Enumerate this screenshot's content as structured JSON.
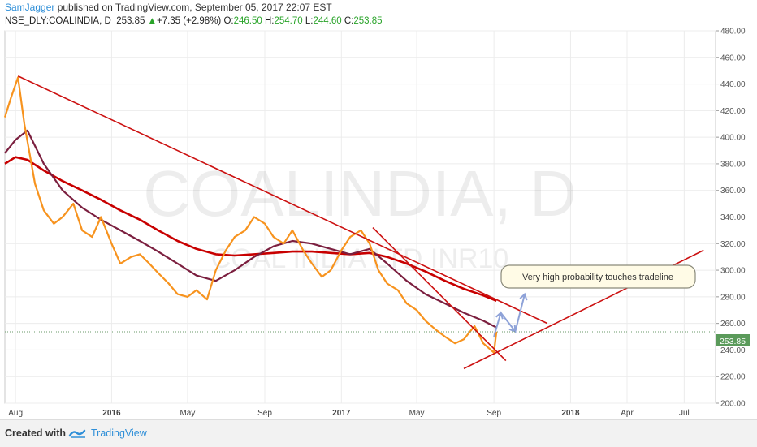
{
  "header": {
    "author": "SamJagger",
    "published": " published on TradingView.com, September 05, 2017 22:07 EST",
    "symbol": "NSE_DLY:COALINDIA, D",
    "price": "253.85",
    "change_arrow": "▲",
    "change": "+7.35 (+2.98%)",
    "o_label": "O:",
    "o": "246.50",
    "h_label": "H:",
    "h": "254.70",
    "l_label": "L:",
    "l": "244.60",
    "c_label": "C:",
    "c": "253.85"
  },
  "watermark": {
    "line1": "COALINDIA, D",
    "line2": "COAL INDIA LTD INR10"
  },
  "footer": {
    "created_with": "Created with",
    "brand": "TradingView"
  },
  "colors": {
    "price": "#f7931e",
    "ma_dark": "#7b1f3f",
    "ma_red": "#c80000",
    "trendline": "#cc1111",
    "projection": "#8ea2d8",
    "last_price_bg": "#5a9a5a"
  },
  "chart_data": {
    "type": "line",
    "title": "",
    "ylim": [
      200,
      480
    ],
    "y_ticks": [
      "200.00",
      "220.00",
      "240.00",
      "260.00",
      "280.00",
      "300.00",
      "320.00",
      "340.00",
      "360.00",
      "380.00",
      "400.00",
      "420.00",
      "440.00",
      "460.00",
      "480.00"
    ],
    "x_ticks": [
      "Aug",
      "2016",
      "May",
      "Sep",
      "2017",
      "May",
      "Sep",
      "2018",
      "Apr",
      "Jul"
    ],
    "last_price": "253.85",
    "annotation": "Very high probability touches tradeline",
    "series": [
      {
        "key": "price",
        "x": [
          "2015-07-15",
          "2015-07-25",
          "2015-08-05",
          "2015-08-15",
          "2015-09-01",
          "2015-09-15",
          "2015-10-01",
          "2015-10-15",
          "2015-11-01",
          "2015-11-15",
          "2015-12-01",
          "2015-12-15",
          "2016-01-01",
          "2016-01-15",
          "2016-02-01",
          "2016-02-15",
          "2016-03-01",
          "2016-03-15",
          "2016-04-01",
          "2016-04-15",
          "2016-05-01",
          "2016-05-15",
          "2016-06-01",
          "2016-06-15",
          "2016-07-01",
          "2016-07-15",
          "2016-08-01",
          "2016-08-15",
          "2016-09-01",
          "2016-09-15",
          "2016-10-01",
          "2016-10-15",
          "2016-11-01",
          "2016-11-15",
          "2016-12-01",
          "2016-12-15",
          "2017-01-01",
          "2017-01-15",
          "2017-02-01",
          "2017-02-15",
          "2017-03-01",
          "2017-03-15",
          "2017-04-01",
          "2017-04-15",
          "2017-05-01",
          "2017-05-15",
          "2017-06-01",
          "2017-06-15",
          "2017-07-01",
          "2017-07-15",
          "2017-08-01",
          "2017-08-15",
          "2017-09-01",
          "2017-09-05"
        ],
        "values": [
          415,
          430,
          445,
          410,
          365,
          345,
          335,
          340,
          350,
          330,
          325,
          340,
          320,
          305,
          310,
          312,
          305,
          298,
          290,
          282,
          280,
          285,
          278,
          300,
          315,
          325,
          330,
          340,
          335,
          325,
          320,
          330,
          315,
          305,
          295,
          300,
          315,
          325,
          330,
          320,
          300,
          290,
          285,
          275,
          270,
          262,
          255,
          250,
          245,
          248,
          258,
          245,
          238,
          253.85
        ]
      },
      {
        "key": "ma_short",
        "x": [
          "2015-07-15",
          "2015-08-01",
          "2015-08-20",
          "2015-09-15",
          "2015-10-15",
          "2015-11-15",
          "2015-12-15",
          "2016-01-15",
          "2016-02-15",
          "2016-03-15",
          "2016-04-15",
          "2016-05-15",
          "2016-06-15",
          "2016-07-15",
          "2016-08-15",
          "2016-09-15",
          "2016-10-15",
          "2016-11-15",
          "2016-12-15",
          "2017-01-15",
          "2017-02-15",
          "2017-03-15",
          "2017-04-15",
          "2017-05-15",
          "2017-06-15",
          "2017-07-15",
          "2017-08-15",
          "2017-09-05"
        ],
        "values": [
          388,
          398,
          405,
          380,
          360,
          347,
          338,
          330,
          322,
          314,
          305,
          296,
          292,
          300,
          310,
          318,
          322,
          320,
          316,
          312,
          316,
          305,
          292,
          282,
          275,
          268,
          262,
          257
        ]
      },
      {
        "key": "ma_long",
        "x": [
          "2015-07-15",
          "2015-08-01",
          "2015-08-20",
          "2015-09-15",
          "2015-10-15",
          "2015-11-15",
          "2015-12-15",
          "2016-01-15",
          "2016-02-15",
          "2016-03-15",
          "2016-04-15",
          "2016-05-15",
          "2016-06-15",
          "2016-07-15",
          "2016-08-15",
          "2016-09-15",
          "2016-10-15",
          "2016-11-15",
          "2016-12-15",
          "2017-01-15",
          "2017-02-15",
          "2017-03-15",
          "2017-04-15",
          "2017-05-15",
          "2017-06-15",
          "2017-07-15",
          "2017-08-15",
          "2017-09-05"
        ],
        "values": [
          380,
          385,
          383,
          375,
          367,
          360,
          353,
          345,
          338,
          330,
          322,
          316,
          312,
          311,
          312,
          313,
          314,
          314,
          313,
          312,
          313,
          310,
          305,
          299,
          292,
          286,
          281,
          277
        ]
      }
    ],
    "trendlines": [
      {
        "x": [
          "2015-08-05",
          "2017-11-25"
        ],
        "values": [
          446,
          260
        ]
      },
      {
        "x": [
          "2017-02-20",
          "2017-09-20"
        ],
        "values": [
          332,
          232
        ]
      },
      {
        "x": [
          "2017-07-15",
          "2018-08-01"
        ],
        "values": [
          226,
          315
        ]
      }
    ],
    "projection": {
      "x": [
        "2017-09-01",
        "2017-09-12",
        "2017-10-05",
        "2017-10-20"
      ],
      "values": [
        250,
        268,
        254,
        282
      ]
    }
  }
}
